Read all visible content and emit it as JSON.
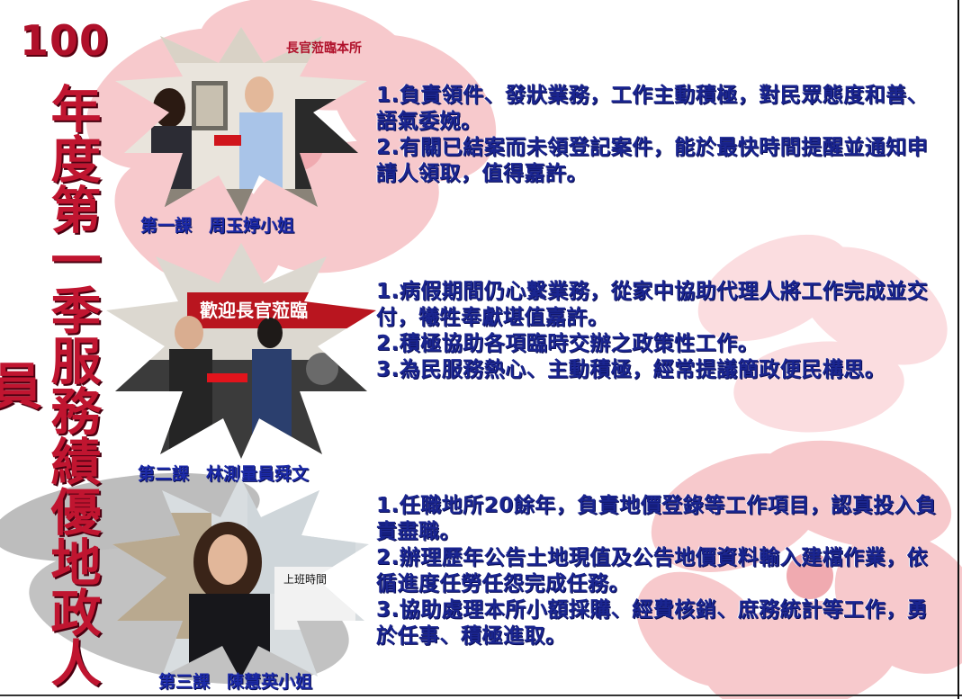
{
  "title": {
    "year": "100",
    "vertical": "年度第一季服務績優地政人員"
  },
  "colors": {
    "title": "#c01530",
    "caption": "#1c2aa8",
    "description": "#1a2590",
    "flower": "#f7c9cc"
  },
  "entries": [
    {
      "caption": "第一課　周玉婷小姐",
      "photo_sign": "長官蒞臨本所",
      "lines": [
        "1.負責領件、發狀業務，工作主動積極，對民眾態度和善、語氣委婉。",
        "2.有關已結案而未領登記案件，能於最快時間提醒並通知申請人領取，值得嘉許。"
      ]
    },
    {
      "caption": "第二課　林測量員舜文",
      "photo_sign": "歡迎長官蒞臨",
      "lines": [
        "1.病假期間仍心繫業務，從家中協助代理人將工作完成並交付，犧牲奉獻堪值嘉許。",
        "2.積極協助各項臨時交辦之政策性工作。",
        "3.為民服務熱心、主動積極，經常提議簡政便民構思。"
      ]
    },
    {
      "caption": "第三課　陳慧英小姐",
      "photo_sign": "上班時間",
      "lines": [
        "1.任職地所20餘年，負責地價登錄等工作項目，認真投入負責盡職。",
        "2.辦理歷年公告土地現值及公告地價資料輸入建檔作業，依循進度任勞任怨完成任務。",
        "3.協助處理本所小額採購、經費核銷、庶務統計等工作，勇於任事、積極進取。"
      ]
    }
  ]
}
